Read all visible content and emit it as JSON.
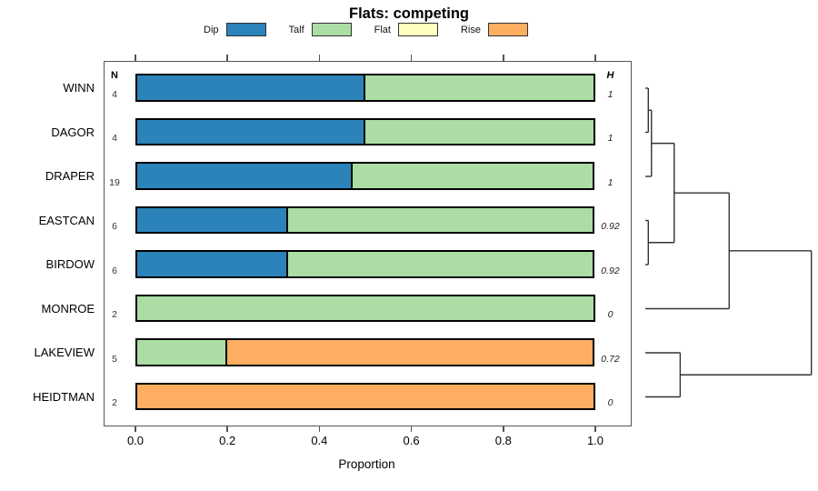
{
  "chart_data": {
    "type": "bar",
    "variant": "horizontal-stacked-proportion-with-dendrogram",
    "title": "Flats: competing",
    "xlabel": "Proportion",
    "xlim": [
      0,
      1
    ],
    "xticks": [
      0,
      0.2,
      0.4,
      0.6,
      0.8,
      1
    ],
    "xtick_labels": [
      "0.0",
      "0.2",
      "0.4",
      "0.6",
      "0.8",
      "1.0"
    ],
    "grid": false,
    "legend_position": "top",
    "states": [
      {
        "label": "Dip",
        "color": "#2b83ba"
      },
      {
        "label": "Talf",
        "color": "#abdda4"
      },
      {
        "label": "Flat",
        "color": "#ffffbf"
      },
      {
        "label": "Rise",
        "color": "#fdae61"
      }
    ],
    "n_column_header": "N",
    "h_column_header": "H",
    "rows": [
      {
        "name": "WINN",
        "n": "4",
        "h": "1",
        "segments": [
          {
            "state": "Dip",
            "value": 0.5
          },
          {
            "state": "Talf",
            "value": 0.5
          }
        ]
      },
      {
        "name": "DAGOR",
        "n": "4",
        "h": "1",
        "segments": [
          {
            "state": "Dip",
            "value": 0.5
          },
          {
            "state": "Talf",
            "value": 0.5
          }
        ]
      },
      {
        "name": "DRAPER",
        "n": "19",
        "h": "1",
        "segments": [
          {
            "state": "Dip",
            "value": 0.4737
          },
          {
            "state": "Talf",
            "value": 0.5263
          }
        ]
      },
      {
        "name": "EASTCAN",
        "n": "6",
        "h": "0.92",
        "segments": [
          {
            "state": "Dip",
            "value": 0.3333
          },
          {
            "state": "Talf",
            "value": 0.6667
          }
        ]
      },
      {
        "name": "BIRDOW",
        "n": "6",
        "h": "0.92",
        "segments": [
          {
            "state": "Dip",
            "value": 0.3333
          },
          {
            "state": "Talf",
            "value": 0.6667
          }
        ]
      },
      {
        "name": "MONROE",
        "n": "2",
        "h": "0",
        "segments": [
          {
            "state": "Talf",
            "value": 1.0
          }
        ]
      },
      {
        "name": "LAKEVIEW",
        "n": "5",
        "h": "0.72",
        "segments": [
          {
            "state": "Talf",
            "value": 0.2
          },
          {
            "state": "Rise",
            "value": 0.8
          }
        ]
      },
      {
        "name": "HEIDTMAN",
        "n": "2",
        "h": "0",
        "segments": [
          {
            "state": "Rise",
            "value": 1.0
          }
        ]
      }
    ],
    "dendrogram": {
      "leaves": [
        "WINN",
        "DAGOR",
        "DRAPER",
        "EASTCAN",
        "BIRDOW",
        "MONROE",
        "LAKEVIEW",
        "HEIDTMAN"
      ],
      "merges": [
        {
          "a": "WINN",
          "b": "DAGOR",
          "height": 0.018
        },
        {
          "a": "m0",
          "b": "DRAPER",
          "height": 0.037
        },
        {
          "a": "EASTCAN",
          "b": "BIRDOW",
          "height": 0.018
        },
        {
          "a": "m1",
          "b": "m2",
          "height": 0.174
        },
        {
          "a": "m3",
          "b": "MONROE",
          "height": 0.505
        },
        {
          "a": "LAKEVIEW",
          "b": "HEIDTMAN",
          "height": 0.21
        },
        {
          "a": "m4",
          "b": "m5",
          "height": 1.0
        }
      ]
    }
  }
}
